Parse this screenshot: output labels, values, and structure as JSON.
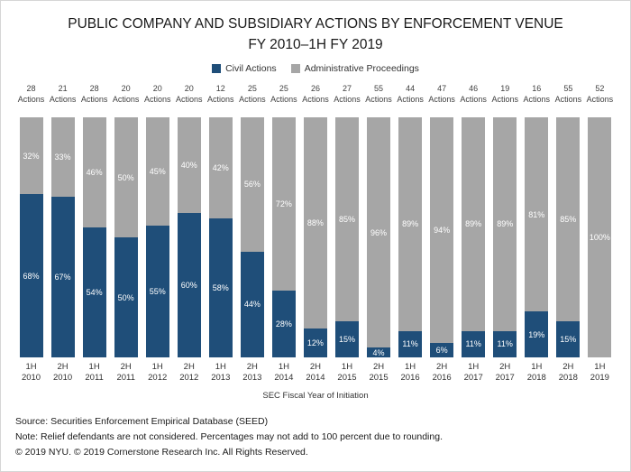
{
  "title": {
    "line1": "PUBLIC COMPANY AND SUBSIDIARY ACTIONS BY ENFORCEMENT VENUE",
    "line2": "FY 2010–1H FY 2019"
  },
  "chart_data": {
    "type": "bar",
    "stacked": true,
    "percent": true,
    "title": "PUBLIC COMPANY AND SUBSIDIARY ACTIONS BY ENFORCEMENT VENUE FY 2010–1H FY 2019",
    "xlabel": "SEC Fiscal Year of Initiation",
    "ylabel": "",
    "ylim": [
      0,
      100
    ],
    "legend_position": "top",
    "grid": false,
    "categories": [
      "1H 2010",
      "2H 2010",
      "1H 2011",
      "2H 2011",
      "1H 2012",
      "2H 2012",
      "1H 2013",
      "2H 2013",
      "1H 2014",
      "2H 2014",
      "1H 2015",
      "2H 2015",
      "1H 2016",
      "2H 2016",
      "1H 2017",
      "2H 2017",
      "1H 2018",
      "2H 2018",
      "1H 2019"
    ],
    "counts": [
      28,
      21,
      28,
      20,
      20,
      20,
      12,
      25,
      25,
      26,
      27,
      55,
      44,
      47,
      46,
      19,
      16,
      55,
      52
    ],
    "count_suffix": "Actions",
    "series": [
      {
        "name": "Civil Actions",
        "color": "#1F4E79",
        "values": [
          68,
          67,
          54,
          50,
          55,
          60,
          58,
          44,
          28,
          12,
          15,
          4,
          11,
          6,
          11,
          11,
          19,
          15,
          0
        ]
      },
      {
        "name": "Administrative Proceedings",
        "color": "#A6A6A6",
        "values": [
          32,
          33,
          46,
          50,
          45,
          40,
          42,
          56,
          72,
          88,
          85,
          96,
          89,
          94,
          89,
          89,
          81,
          85,
          100
        ]
      }
    ]
  },
  "footer": {
    "source": "Source:  Securities Enforcement Empirical Database (SEED)",
    "note": "Note:  Relief defendants are not considered. Percentages may not add to 100 percent due to rounding.",
    "copyright": "© 2019 NYU. © 2019 Cornerstone Research Inc. All Rights Reserved."
  }
}
